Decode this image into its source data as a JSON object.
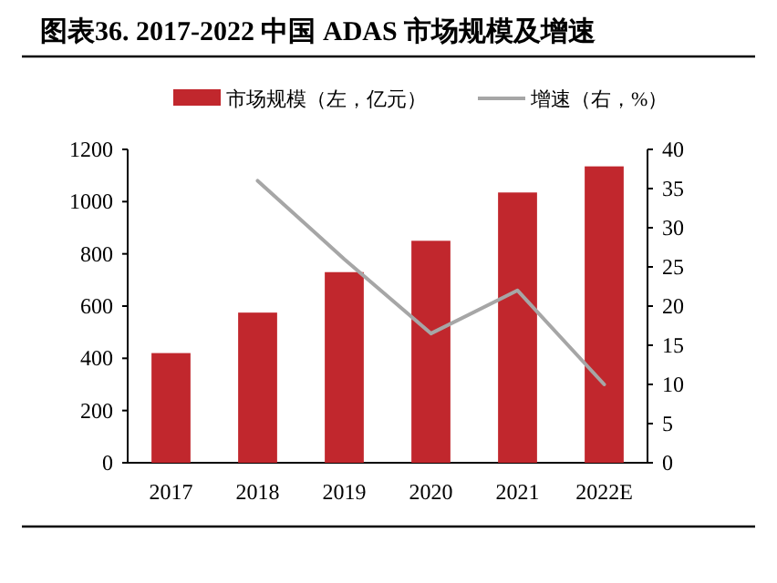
{
  "chart_data": {
    "type": "bar",
    "title": "图表36. 2017-2022 中国 ADAS 市场规模及增速",
    "categories": [
      "2017",
      "2018",
      "2019",
      "2020",
      "2021",
      "2022E"
    ],
    "series": [
      {
        "name": "市场规模（左，亿元）",
        "color": "#c1272d",
        "values": [
          420,
          575,
          730,
          850,
          1035,
          1135
        ]
      },
      {
        "name": "增速（右，%）",
        "type": "line",
        "axis": "y2",
        "color": "#a6a6a6",
        "values": [
          null,
          36,
          26,
          16.5,
          22,
          10
        ]
      }
    ],
    "ylim": [
      0,
      1200
    ],
    "yticks": [
      0,
      200,
      400,
      600,
      800,
      1000,
      1200
    ],
    "y2lim": [
      0,
      40
    ],
    "y2ticks": [
      0,
      5,
      10,
      15,
      20,
      25,
      30,
      35,
      40
    ],
    "legend": "top",
    "grid": false,
    "marker": "none",
    "line_style": "solid"
  }
}
